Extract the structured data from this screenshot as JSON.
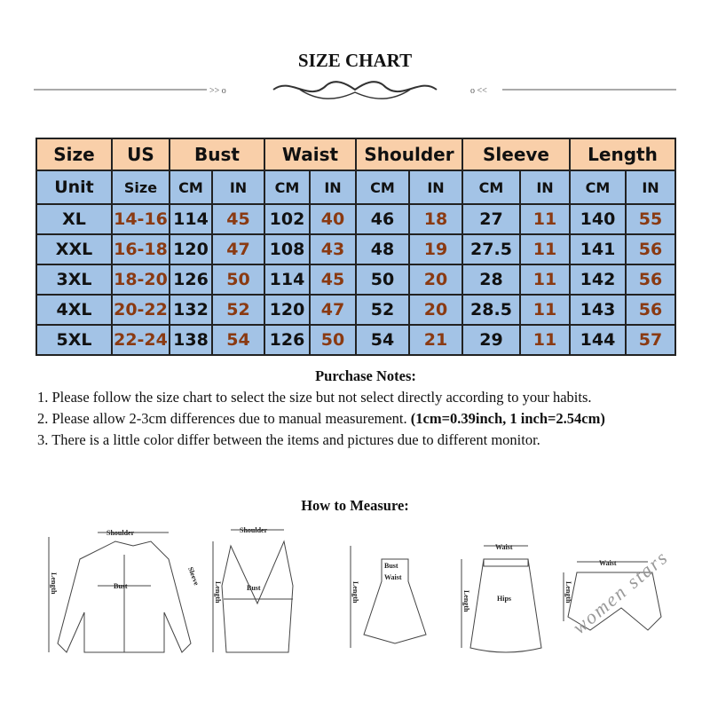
{
  "title": "SIZE CHART",
  "table": {
    "headers": [
      "Size",
      "US",
      "Bust",
      "Waist",
      "Shoulder",
      "Sleeve",
      "Length"
    ],
    "unit_row": [
      "Unit",
      "Size",
      "CM",
      "IN",
      "CM",
      "IN",
      "CM",
      "IN",
      "CM",
      "IN",
      "CM",
      "IN"
    ],
    "rows": [
      [
        "XL",
        "14-16",
        "114",
        "45",
        "102",
        "40",
        "46",
        "18",
        "27",
        "11",
        "140",
        "55"
      ],
      [
        "XXL",
        "16-18",
        "120",
        "47",
        "108",
        "43",
        "48",
        "19",
        "27.5",
        "11",
        "141",
        "56"
      ],
      [
        "3XL",
        "18-20",
        "126",
        "50",
        "114",
        "45",
        "50",
        "20",
        "28",
        "11",
        "142",
        "56"
      ],
      [
        "4XL",
        "20-22",
        "132",
        "52",
        "120",
        "47",
        "52",
        "20",
        "28.5",
        "11",
        "143",
        "56"
      ],
      [
        "5XL",
        "22-24",
        "138",
        "54",
        "126",
        "50",
        "54",
        "21",
        "29",
        "11",
        "144",
        "57"
      ]
    ],
    "colors": {
      "header_bg": "#f9cfa9",
      "body_bg": "#a3c3e6",
      "inch_text": "#8a3a12"
    }
  },
  "notes": {
    "heading": "Purchase Notes:",
    "n1": "1. Please follow the size chart to select the size but not select directly according to your habits.",
    "n2": "2. Please allow 2-3cm differences due to manual measurement.",
    "n2_bold": "(1cm=0.39inch, 1 inch=2.54cm)",
    "n3": "3. There is a little color differ between the items and pictures due to different monitor."
  },
  "measure": {
    "heading": "How to Measure:",
    "labels": {
      "shoulder": "Shoulder",
      "bust": "Bust",
      "sleeve": "Sleeve",
      "length": "Length",
      "waist": "Waist",
      "hips": "Hips"
    }
  },
  "watermark": "women stars"
}
